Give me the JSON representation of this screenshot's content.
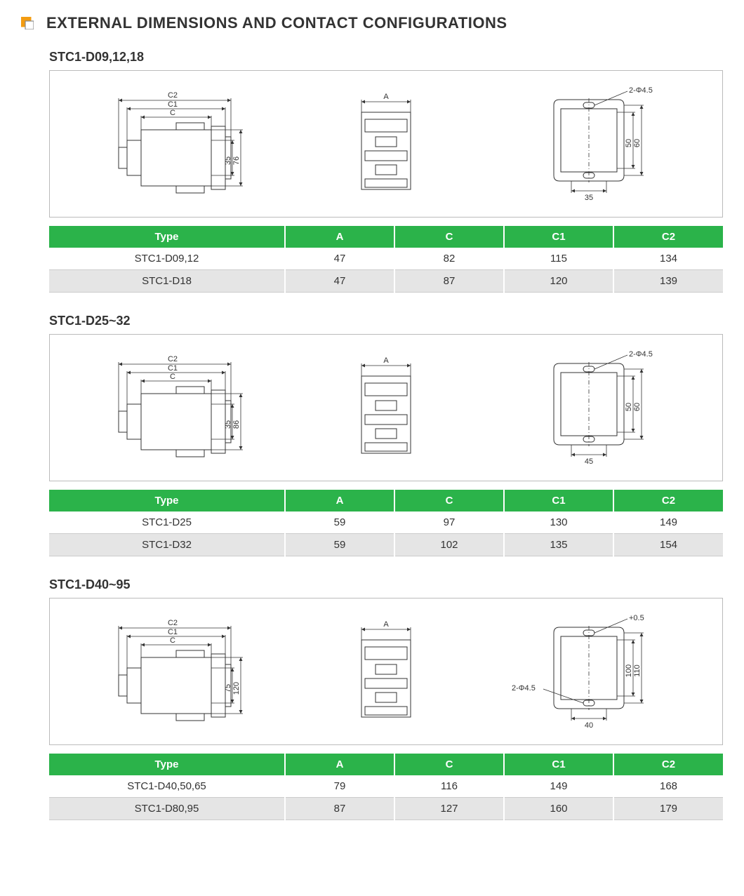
{
  "page": {
    "title": "EXTERNAL DIMENSIONS AND CONTACT CONFIGURATIONS"
  },
  "sections": [
    {
      "title": "STC1-D09,12,18",
      "diagram": {
        "side": {
          "labels": [
            "C2",
            "C1",
            "C"
          ],
          "h_inner": "35",
          "h_outer": "76"
        },
        "front": {
          "label": "A"
        },
        "mount": {
          "hole_label": "2-Φ4.5",
          "h_inner": "50",
          "h_outer": "60",
          "w": "35"
        }
      },
      "table": {
        "columns": [
          "Type",
          "A",
          "C",
          "C1",
          "C2"
        ],
        "rows": [
          [
            "STC1-D09,12",
            "47",
            "82",
            "115",
            "134"
          ],
          [
            "STC1-D18",
            "47",
            "87",
            "120",
            "139"
          ]
        ]
      }
    },
    {
      "title": "STC1-D25~32",
      "diagram": {
        "side": {
          "labels": [
            "C2",
            "C1",
            "C"
          ],
          "h_inner": "35",
          "h_outer": "86"
        },
        "front": {
          "label": "A"
        },
        "mount": {
          "hole_label": "2-Φ4.5",
          "h_inner": "50",
          "h_outer": "60",
          "w": "45"
        }
      },
      "table": {
        "columns": [
          "Type",
          "A",
          "C",
          "C1",
          "C2"
        ],
        "rows": [
          [
            "STC1-D25",
            "59",
            "97",
            "130",
            "149"
          ],
          [
            "STC1-D32",
            "59",
            "102",
            "135",
            "154"
          ]
        ]
      }
    },
    {
      "title": "STC1-D40~95",
      "diagram": {
        "side": {
          "labels": [
            "C2",
            "C1",
            "C"
          ],
          "h_inner": "75",
          "h_outer": "120"
        },
        "front": {
          "label": "A"
        },
        "mount": {
          "hole_label": "2-Φ4.5",
          "tol": "+0.5",
          "h_inner": "100",
          "h_outer": "110",
          "w": "40"
        }
      },
      "table": {
        "columns": [
          "Type",
          "A",
          "C",
          "C1",
          "C2"
        ],
        "rows": [
          [
            "STC1-D40,50,65",
            "79",
            "116",
            "149",
            "168"
          ],
          [
            "STC1-D80,95",
            "87",
            "127",
            "160",
            "179"
          ]
        ]
      }
    }
  ],
  "colors": {
    "accent": "#2bb34a",
    "icon_orange": "#f39c12",
    "border": "#bbbbbb",
    "row_alt": "#e5e5e5",
    "text": "#333333"
  }
}
